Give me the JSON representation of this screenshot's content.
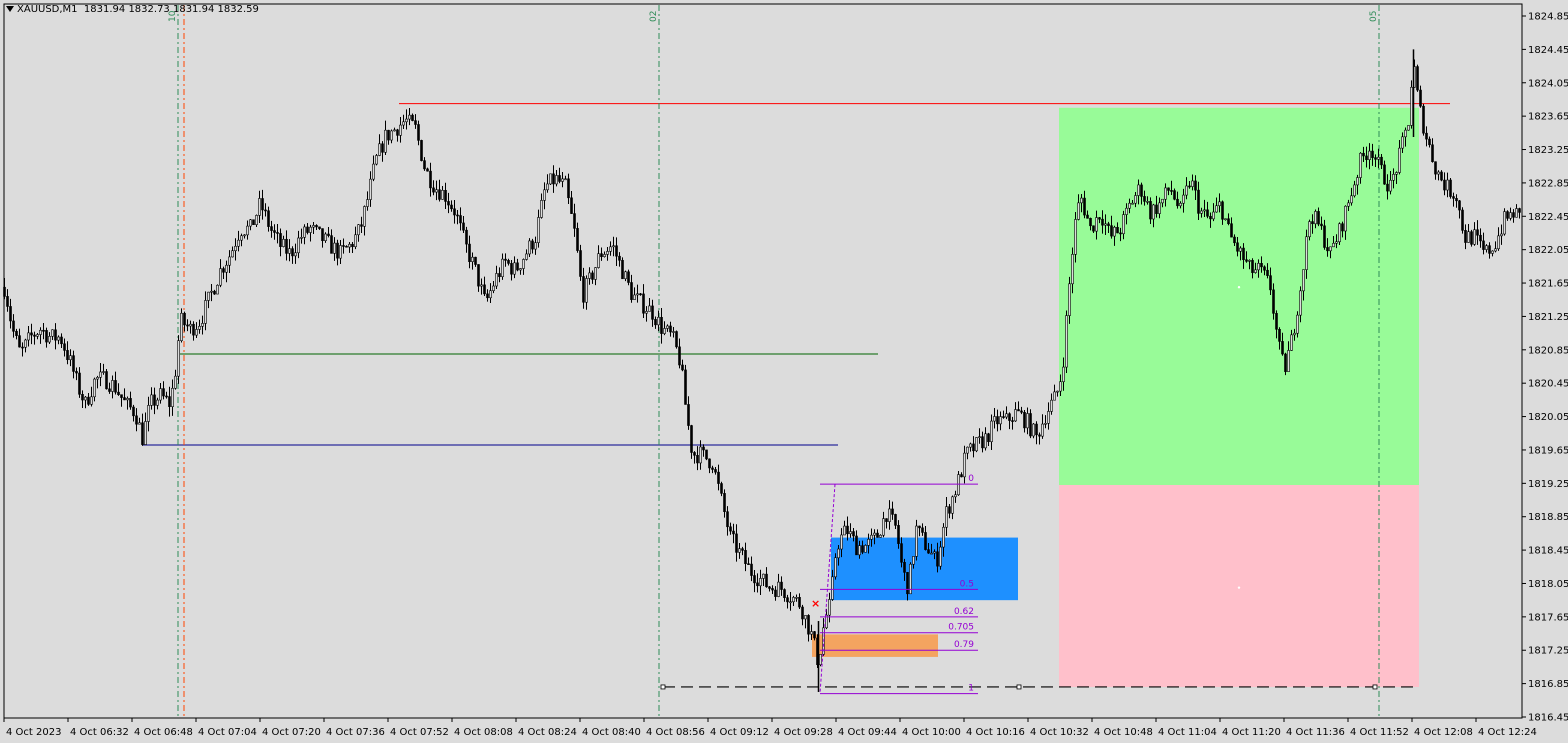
{
  "header": {
    "symbol": "XAUUSD,M1",
    "values": "1831.94 1832.73 1831.94 1832.59"
  },
  "colors": {
    "background": "#dcdcdc",
    "candle": "#000000",
    "take_profit_zone": "#98fb98",
    "stop_loss_zone": "#ffc0cb",
    "order_block": "#1e90ff",
    "entry_zone": "#f4a460",
    "fib": "#9400d3",
    "resistance_line": "#ff0000",
    "green_line": "#006400",
    "blue_line": "#00008b",
    "vline_green": "#2e8b57",
    "vline_red": "#ff4500"
  },
  "chart_data": {
    "type": "candlestick",
    "ylim": [
      1816.65,
      1824.95
    ],
    "y_ticks": [
      1824.85,
      1824.45,
      1824.05,
      1823.65,
      1823.25,
      1822.85,
      1822.45,
      1822.05,
      1821.65,
      1821.25,
      1820.85,
      1820.45,
      1820.05,
      1819.65,
      1819.25,
      1818.85,
      1818.45,
      1818.05,
      1817.65,
      1817.25,
      1816.85,
      1816.45
    ],
    "x_ticks": [
      "4 Oct 2023",
      "4 Oct 06:32",
      "4 Oct 06:48",
      "4 Oct 07:04",
      "4 Oct 07:20",
      "4 Oct 07:36",
      "4 Oct 07:52",
      "4 Oct 08:08",
      "4 Oct 08:24",
      "4 Oct 08:40",
      "4 Oct 08:56",
      "4 Oct 09:12",
      "4 Oct 09:28",
      "4 Oct 09:44",
      "4 Oct 10:00",
      "4 Oct 10:16",
      "4 Oct 10:32",
      "4 Oct 10:48",
      "4 Oct 11:04",
      "4 Oct 11:20",
      "4 Oct 11:36",
      "4 Oct 11:52",
      "4 Oct 12:08",
      "4 Oct 12:24"
    ],
    "close_path": [
      [
        0,
        1821.8
      ],
      [
        6,
        1821.5
      ],
      [
        12,
        1821.1
      ],
      [
        20,
        1820.8
      ],
      [
        30,
        1821.0
      ],
      [
        40,
        1821.1
      ],
      [
        50,
        1821.0
      ],
      [
        60,
        1821.0
      ],
      [
        70,
        1820.7
      ],
      [
        78,
        1820.4
      ],
      [
        85,
        1820.2
      ],
      [
        95,
        1820.5
      ],
      [
        105,
        1820.5
      ],
      [
        115,
        1820.4
      ],
      [
        125,
        1820.2
      ],
      [
        135,
        1820.1
      ],
      [
        142,
        1819.8
      ],
      [
        150,
        1820.2
      ],
      [
        160,
        1820.3
      ],
      [
        170,
        1820.2
      ],
      [
        175,
        1820.6
      ],
      [
        180,
        1821.2
      ],
      [
        190,
        1821.1
      ],
      [
        200,
        1821.2
      ],
      [
        210,
        1821.5
      ],
      [
        220,
        1821.8
      ],
      [
        230,
        1822.0
      ],
      [
        240,
        1822.3
      ],
      [
        250,
        1822.3
      ],
      [
        260,
        1822.6
      ],
      [
        270,
        1822.3
      ],
      [
        280,
        1822.1
      ],
      [
        290,
        1822.0
      ],
      [
        300,
        1822.2
      ],
      [
        310,
        1822.3
      ],
      [
        320,
        1822.2
      ],
      [
        330,
        1822.1
      ],
      [
        340,
        1822.0
      ],
      [
        350,
        1822.1
      ],
      [
        360,
        1822.3
      ],
      [
        368,
        1822.7
      ],
      [
        375,
        1823.1
      ],
      [
        385,
        1823.4
      ],
      [
        395,
        1823.5
      ],
      [
        405,
        1823.6
      ],
      [
        415,
        1823.5
      ],
      [
        425,
        1823.0
      ],
      [
        435,
        1822.8
      ],
      [
        445,
        1822.7
      ],
      [
        455,
        1822.5
      ],
      [
        465,
        1822.1
      ],
      [
        475,
        1821.8
      ],
      [
        485,
        1821.4
      ],
      [
        495,
        1821.7
      ],
      [
        505,
        1821.9
      ],
      [
        515,
        1821.8
      ],
      [
        525,
        1822.0
      ],
      [
        535,
        1822.2
      ],
      [
        545,
        1822.8
      ],
      [
        555,
        1822.9
      ],
      [
        565,
        1822.8
      ],
      [
        575,
        1822.2
      ],
      [
        582,
        1821.5
      ],
      [
        590,
        1821.7
      ],
      [
        600,
        1822.0
      ],
      [
        612,
        1822.1
      ],
      [
        622,
        1821.8
      ],
      [
        632,
        1821.5
      ],
      [
        642,
        1821.4
      ],
      [
        652,
        1821.3
      ],
      [
        662,
        1821.1
      ],
      [
        672,
        1821.0
      ],
      [
        680,
        1820.7
      ],
      [
        686,
        1820.1
      ],
      [
        692,
        1819.6
      ],
      [
        700,
        1819.6
      ],
      [
        712,
        1819.5
      ],
      [
        722,
        1819.0
      ],
      [
        730,
        1818.6
      ],
      [
        740,
        1818.4
      ],
      [
        750,
        1818.2
      ],
      [
        760,
        1818.1
      ],
      [
        770,
        1818.0
      ],
      [
        780,
        1818.0
      ],
      [
        790,
        1817.9
      ],
      [
        800,
        1817.8
      ],
      [
        806,
        1817.6
      ],
      [
        812,
        1817.4
      ],
      [
        818,
        1817.1
      ],
      [
        824,
        1817.6
      ],
      [
        830,
        1817.8
      ],
      [
        836,
        1818.5
      ],
      [
        846,
        1818.7
      ],
      [
        856,
        1818.5
      ],
      [
        866,
        1818.5
      ],
      [
        876,
        1818.6
      ],
      [
        886,
        1818.9
      ],
      [
        896,
        1818.7
      ],
      [
        902,
        1818.2
      ],
      [
        908,
        1818.0
      ],
      [
        916,
        1818.7
      ],
      [
        926,
        1818.5
      ],
      [
        936,
        1818.3
      ],
      [
        946,
        1818.9
      ],
      [
        956,
        1819.2
      ],
      [
        966,
        1819.6
      ],
      [
        976,
        1819.7
      ],
      [
        986,
        1819.8
      ],
      [
        996,
        1820.0
      ],
      [
        1006,
        1820.0
      ],
      [
        1016,
        1820.1
      ],
      [
        1026,
        1820.0
      ],
      [
        1036,
        1819.8
      ],
      [
        1046,
        1820.1
      ],
      [
        1056,
        1820.3
      ],
      [
        1062,
        1820.6
      ],
      [
        1068,
        1821.5
      ],
      [
        1074,
        1822.3
      ],
      [
        1080,
        1822.7
      ],
      [
        1090,
        1822.3
      ],
      [
        1100,
        1822.5
      ],
      [
        1110,
        1822.2
      ],
      [
        1120,
        1822.3
      ],
      [
        1130,
        1822.6
      ],
      [
        1140,
        1822.8
      ],
      [
        1150,
        1822.5
      ],
      [
        1160,
        1822.6
      ],
      [
        1170,
        1822.8
      ],
      [
        1180,
        1822.5
      ],
      [
        1190,
        1822.9
      ],
      [
        1200,
        1822.5
      ],
      [
        1210,
        1822.4
      ],
      [
        1220,
        1822.6
      ],
      [
        1230,
        1822.2
      ],
      [
        1240,
        1822.0
      ],
      [
        1250,
        1821.8
      ],
      [
        1260,
        1821.8
      ],
      [
        1270,
        1821.6
      ],
      [
        1278,
        1820.9
      ],
      [
        1284,
        1820.6
      ],
      [
        1292,
        1821.0
      ],
      [
        1300,
        1821.6
      ],
      [
        1310,
        1822.5
      ],
      [
        1320,
        1822.3
      ],
      [
        1330,
        1822.0
      ],
      [
        1340,
        1822.3
      ],
      [
        1350,
        1822.7
      ],
      [
        1360,
        1823.1
      ],
      [
        1370,
        1823.3
      ],
      [
        1380,
        1823.0
      ],
      [
        1390,
        1822.8
      ],
      [
        1400,
        1823.2
      ],
      [
        1408,
        1823.6
      ],
      [
        1413,
        1824.3
      ],
      [
        1418,
        1823.8
      ],
      [
        1426,
        1823.4
      ],
      [
        1436,
        1823.0
      ],
      [
        1446,
        1822.8
      ],
      [
        1456,
        1822.7
      ],
      [
        1464,
        1822.2
      ],
      [
        1474,
        1822.2
      ],
      [
        1484,
        1822.0
      ],
      [
        1494,
        1822.1
      ],
      [
        1504,
        1822.4
      ],
      [
        1514,
        1822.5
      ],
      [
        1522,
        1822.4
      ]
    ],
    "tp_zone": {
      "x0": 1059,
      "x1": 1419,
      "price_top": 1823.75,
      "price_bottom": 1819.23
    },
    "sl_zone": {
      "x0": 1059,
      "x1": 1419,
      "price_top": 1819.23,
      "price_bottom": 1816.81
    },
    "order_block": {
      "x0": 831,
      "x1": 1018,
      "price_top": 1818.6,
      "price_bottom": 1817.85
    },
    "entry_zone": {
      "x0": 812,
      "x1": 938,
      "price_top": 1817.44,
      "price_bottom": 1817.17
    },
    "fib_levels": [
      {
        "label": "0",
        "price": 1819.24
      },
      {
        "label": "0.5",
        "price": 1817.98
      },
      {
        "label": "0.62",
        "price": 1817.65
      },
      {
        "label": "0.705",
        "price": 1817.46
      },
      {
        "label": "0.79",
        "price": 1817.25
      },
      {
        "label": "1",
        "price": 1816.73
      }
    ],
    "fib_range": {
      "x0": 820,
      "x1": 978
    },
    "h_lines": [
      {
        "name": "resistance",
        "price": 1823.8,
        "x0": 399,
        "x1": 1450
      },
      {
        "name": "green",
        "price": 1820.8,
        "x0": 180,
        "x1": 878
      },
      {
        "name": "blue",
        "price": 1819.71,
        "x0": 143,
        "x1": 838
      },
      {
        "name": "dashed-base",
        "price": 1816.81,
        "x0": 663,
        "x1": 1419
      }
    ],
    "v_lines": [
      {
        "x": 178,
        "color": "green",
        "label": "10"
      },
      {
        "x": 184,
        "color": "red",
        "label": ""
      },
      {
        "x": 659,
        "color": "green",
        "label": "02"
      },
      {
        "x": 1379,
        "color": "green",
        "label": "05"
      }
    ]
  }
}
